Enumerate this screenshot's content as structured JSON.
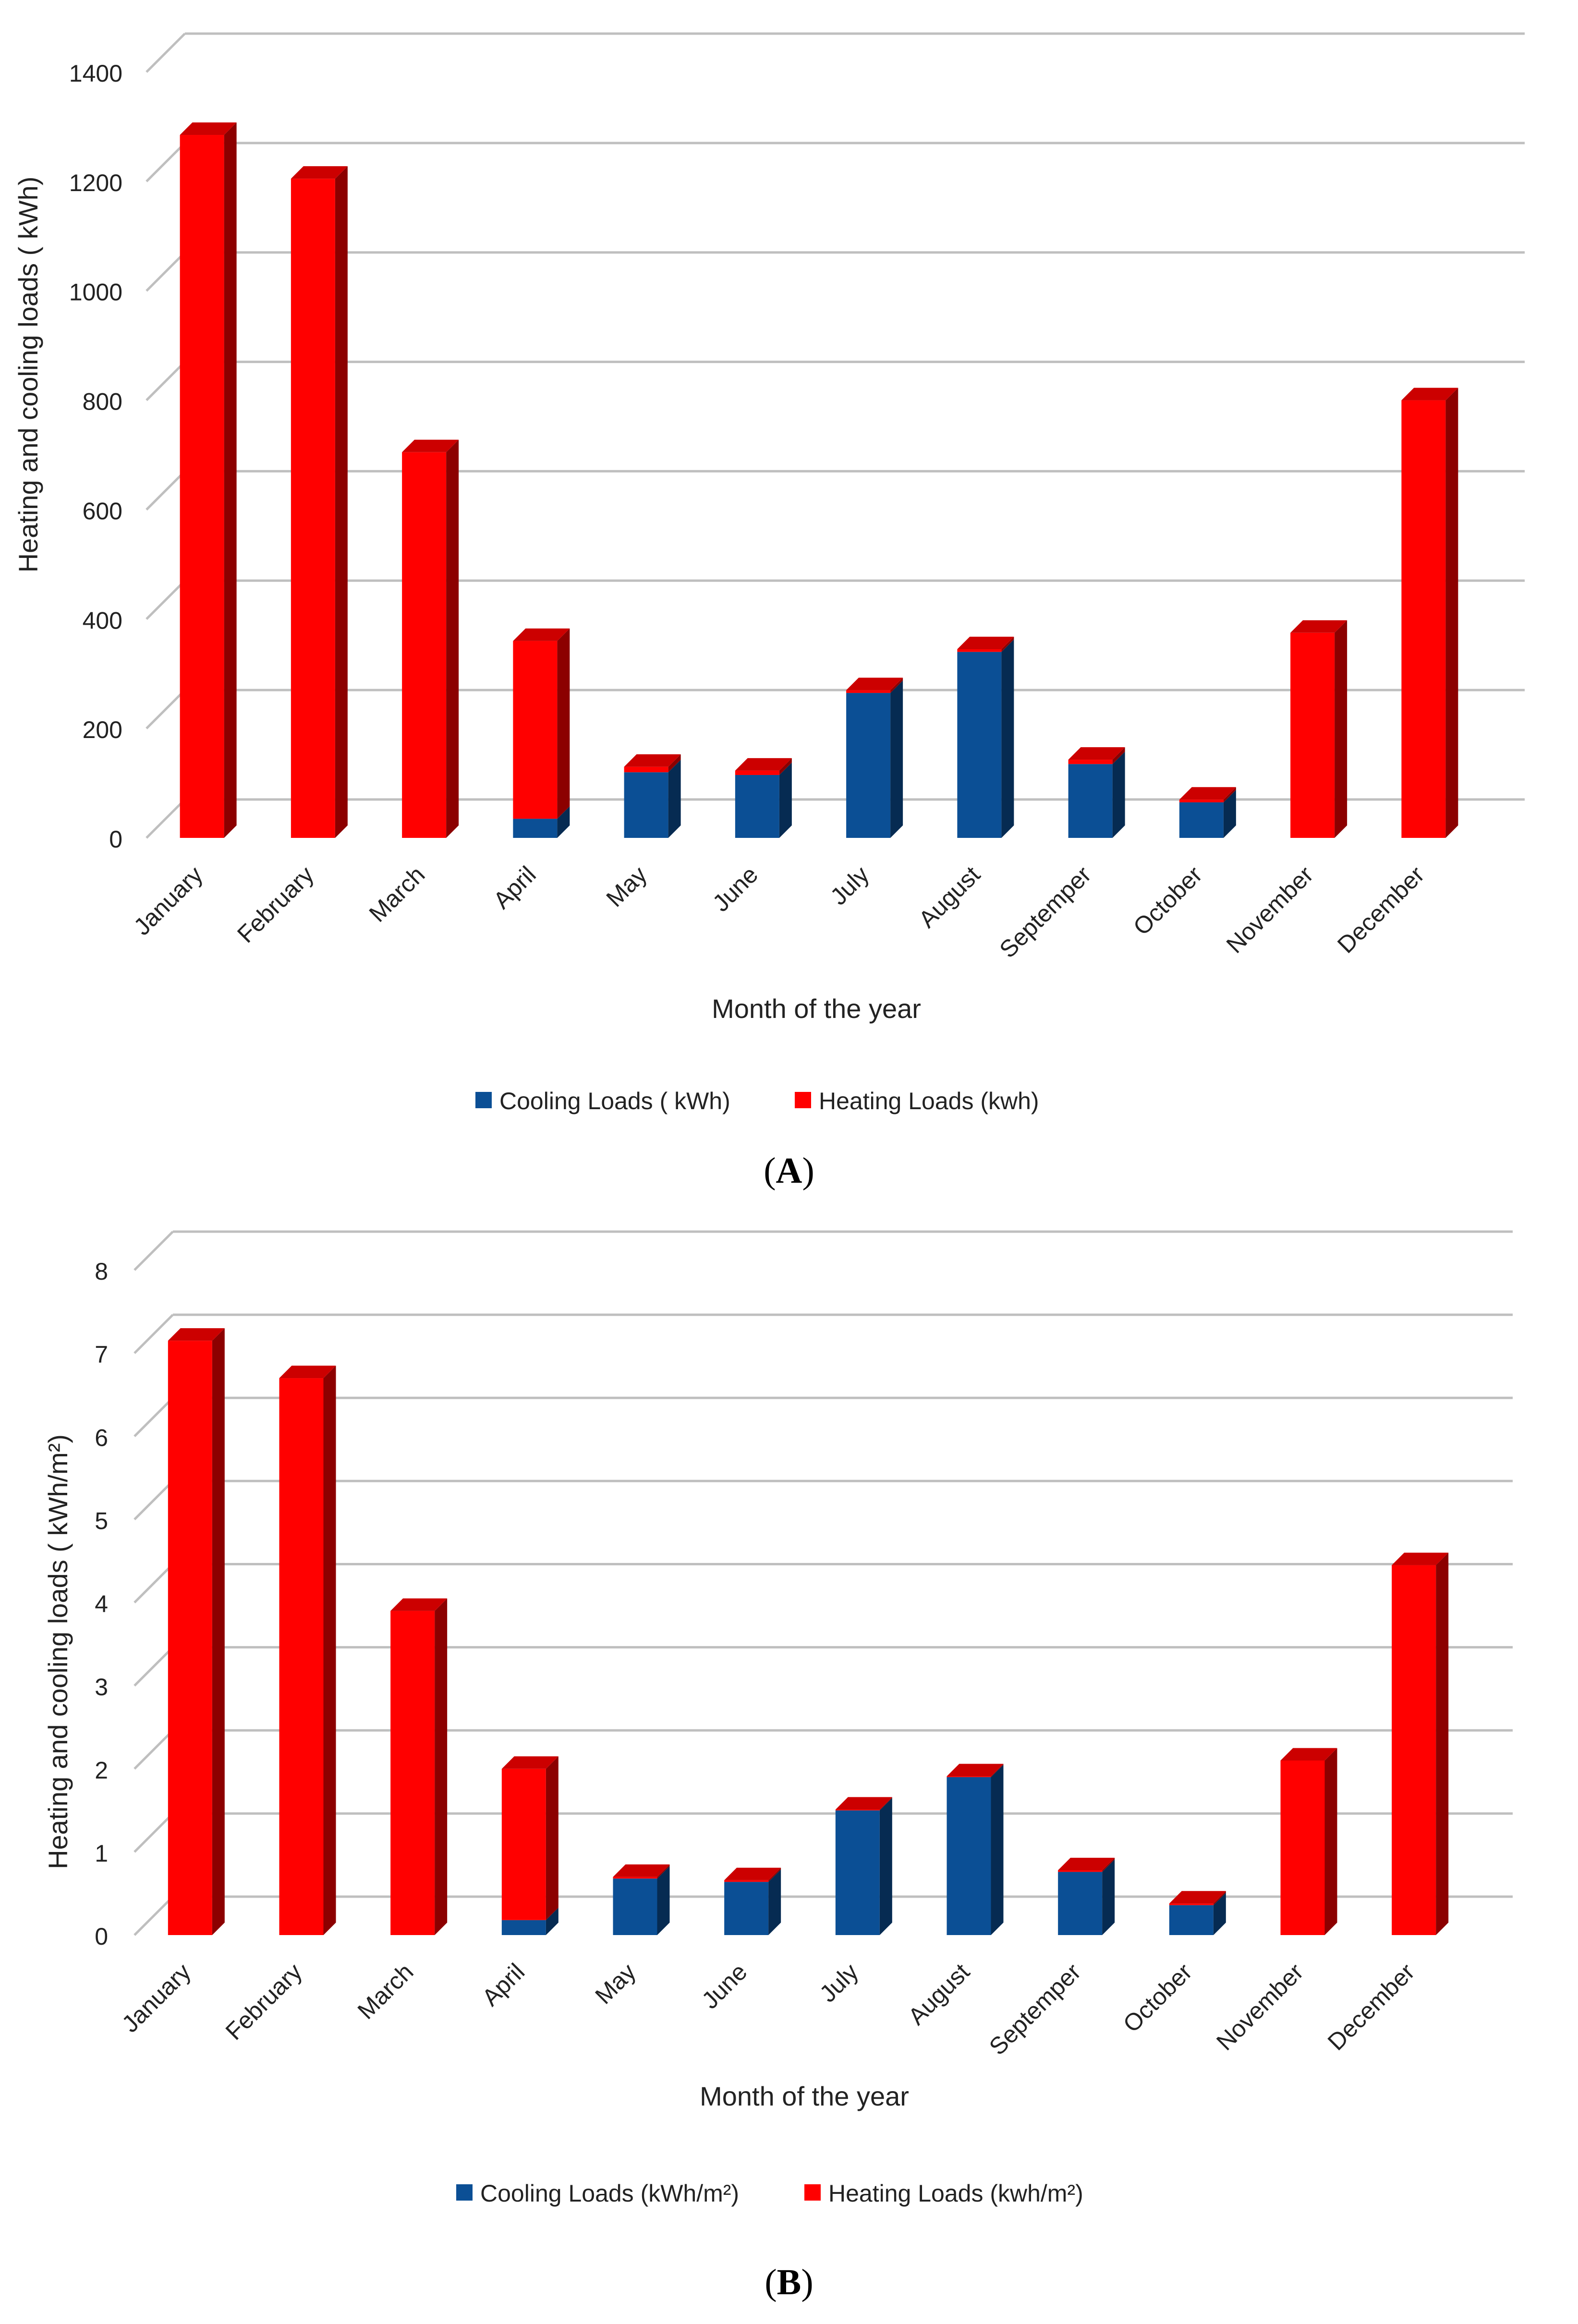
{
  "panels": [
    {
      "id": "A",
      "caption": "A",
      "chart_data": {
        "type": "bar",
        "stacked": true,
        "style": "3d-columns",
        "title": "",
        "xlabel": "Month of the year",
        "ylabel": "Heating and cooling loads ( kWh)",
        "ylim": [
          0,
          1400
        ],
        "yticks": [
          0,
          200,
          400,
          600,
          800,
          1000,
          1200,
          1400
        ],
        "grid": true,
        "legend_position": "bottom",
        "categories": [
          "January",
          "February",
          "March",
          "April",
          "May",
          "June",
          "July",
          "August",
          "Septemper",
          "October",
          "November",
          "December"
        ],
        "series": [
          {
            "name": "Cooling Loads ( kWh)",
            "color": "#0b4f95",
            "values": [
              0,
              0,
              0,
              35,
              120,
              115,
              265,
              340,
              135,
              65,
              0,
              0
            ]
          },
          {
            "name": "Heating Loads   (kwh)",
            "color": "#ff0000",
            "values": [
              1285,
              1205,
              705,
              325,
              10,
              8,
              5,
              5,
              8,
              5,
              375,
              800
            ]
          }
        ]
      }
    },
    {
      "id": "B",
      "caption": "B",
      "chart_data": {
        "type": "bar",
        "stacked": true,
        "style": "3d-columns",
        "title": "",
        "xlabel": "Month of the year",
        "ylabel": "Heating and cooling loads ( kWh/m²)",
        "ylim": [
          0,
          8
        ],
        "yticks": [
          0,
          1,
          2,
          3,
          4,
          5,
          6,
          7,
          8
        ],
        "grid": true,
        "legend_position": "bottom",
        "categories": [
          "January",
          "February",
          "March",
          "April",
          "May",
          "June",
          "July",
          "August",
          "Septemper",
          "October",
          "November",
          "December"
        ],
        "series": [
          {
            "name": "Cooling Loads (kWh/m²)",
            "color": "#0b4f95",
            "values": [
              0,
              0,
              0,
              0.18,
              0.68,
              0.64,
              1.5,
              1.9,
              0.76,
              0.36,
              0,
              0
            ]
          },
          {
            "name": "Heating Loads   (kwh/m²)",
            "color": "#ff0000",
            "values": [
              7.15,
              6.7,
              3.9,
              1.82,
              0.02,
              0.02,
              0.01,
              0.01,
              0.02,
              0.02,
              2.1,
              4.45
            ]
          }
        ]
      }
    }
  ]
}
